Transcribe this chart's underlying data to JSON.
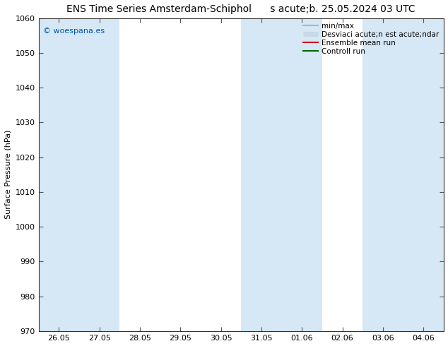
{
  "title_left": "ENS Time Series Amsterdam-Schiphol",
  "title_right": "s acute;b. 25.05.2024 03 UTC",
  "ylabel": "Surface Pressure (hPa)",
  "ylim": [
    970,
    1060
  ],
  "yticks": [
    970,
    980,
    990,
    1000,
    1010,
    1020,
    1030,
    1040,
    1050,
    1060
  ],
  "x_labels": [
    "26.05",
    "27.05",
    "28.05",
    "29.05",
    "30.05",
    "31.05",
    "01.06",
    "02.06",
    "03.06",
    "04.06"
  ],
  "bg_color": "#ffffff",
  "plot_bg": "#ffffff",
  "stripe_color": "#d6e8f5",
  "watermark": "© woespana.es",
  "legend_label_1": "min/max",
  "legend_label_2": "Desviaci acute;n est acute;ndar",
  "legend_label_3": "Ensemble mean run",
  "legend_label_4": "Controll run",
  "legend_color_1": "#a0b8cc",
  "legend_color_2": "#c8d8e8",
  "legend_color_3": "#cc0000",
  "legend_color_4": "#006600",
  "stripe_x_positions": [
    0,
    1,
    5,
    6,
    8,
    9
  ],
  "title_fontsize": 10,
  "label_fontsize": 8,
  "tick_fontsize": 8
}
